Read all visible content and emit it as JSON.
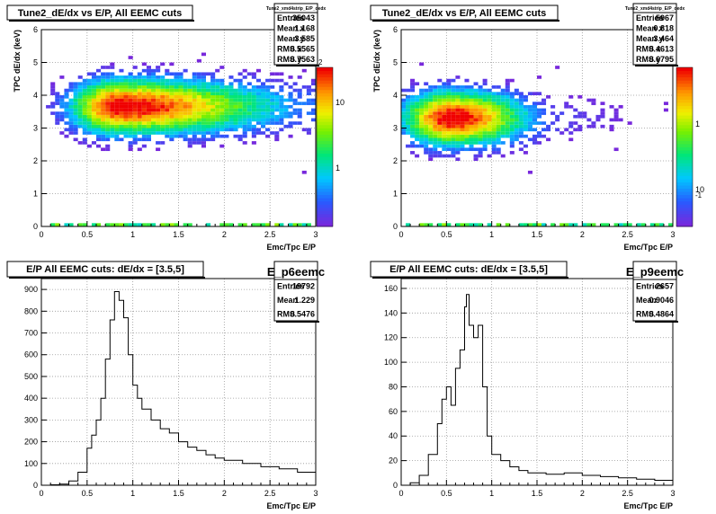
{
  "panels": [
    {
      "title": "Tune2_dE/dx vs E/P, All EEMC cuts",
      "stats": {
        "name": "Tune2_xmd4strip_E/P_dedx",
        "rows": [
          {
            "label": "Entries",
            "value": "35043"
          },
          {
            "label": "Mean x",
            "value": "1.168"
          },
          {
            "label": "Mean y",
            "value": "3.585"
          },
          {
            "label": "RMS x",
            "value": "0.5565"
          },
          {
            "label": "RMS y",
            "value": "0.7563"
          }
        ]
      },
      "colorbar_ticks": [
        "10",
        "1"
      ],
      "colorbar_exp": "2"
    },
    {
      "title": "Tune2_dE/dx vs E/P, All EEMC cuts",
      "stats": {
        "name": "Tune2_xmd4strip_E/P_dedx",
        "rows": [
          {
            "label": "Entries",
            "value": "5967"
          },
          {
            "label": "Mean x",
            "value": "0.818"
          },
          {
            "label": "Mean y",
            "value": "3.464"
          },
          {
            "label": "RMS x",
            "value": "0.4613"
          },
          {
            "label": "RMS y",
            "value": "0.6795"
          }
        ]
      },
      "colorbar_ticks": [
        "1",
        "10"
      ],
      "colorbar_exp": "-1"
    },
    {
      "title": "E/P All EEMC cuts: dE/dx = [3.5,5]",
      "stats": {
        "name": "E_p6eemc",
        "rows": [
          {
            "label": "Entries",
            "value": "19792"
          },
          {
            "label": "Mean",
            "value": "1.229"
          },
          {
            "label": "RMS",
            "value": "0.5476"
          }
        ]
      }
    },
    {
      "title": "E/P All EEMC cuts: dE/dx = [3.5,5]",
      "stats": {
        "name": "E_p9eemc",
        "rows": [
          {
            "label": "Entries",
            "value": "2657"
          },
          {
            "label": "Mean",
            "value": "0.9046"
          },
          {
            "label": "RMS",
            "value": "0.4864"
          }
        ]
      }
    }
  ],
  "chart_data": [
    {
      "type": "heatmap",
      "xlabel": "Emc/Tpc  E/P",
      "ylabel": "TPC dE/dx (keV)",
      "xlim": [
        0,
        3
      ],
      "ylim": [
        0,
        6
      ],
      "xticks": [
        "0",
        "0.5",
        "1",
        "1.5",
        "2",
        "2.5",
        "3"
      ],
      "yticks": [
        "0",
        "1",
        "2",
        "3",
        "4",
        "5",
        "6"
      ],
      "grid": true,
      "peak": {
        "x": 0.85,
        "y": 3.65
      }
    },
    {
      "type": "heatmap",
      "xlabel": "Emc/Tpc  E/P",
      "ylabel": "TPC dE/dx (keV)",
      "xlim": [
        0,
        3
      ],
      "ylim": [
        0,
        6
      ],
      "xticks": [
        "0",
        "0.5",
        "1",
        "1.5",
        "2",
        "2.5",
        "3"
      ],
      "yticks": [
        "0",
        "1",
        "2",
        "3",
        "4",
        "5",
        "6"
      ],
      "grid": true,
      "peak": {
        "x": 0.55,
        "y": 3.3
      }
    },
    {
      "type": "histogram",
      "xlabel": "Emc/Tpc  E/P",
      "ylabel": "",
      "xlim": [
        0,
        3
      ],
      "ylim": [
        0,
        950
      ],
      "xticks": [
        "0",
        "0.5",
        "1",
        "1.5",
        "2",
        "2.5",
        "3"
      ],
      "yticks": [
        "0",
        "100",
        "200",
        "300",
        "400",
        "500",
        "600",
        "700",
        "800",
        "900"
      ],
      "ytick_values": [
        0,
        100,
        200,
        300,
        400,
        500,
        600,
        700,
        800,
        900
      ],
      "grid": true,
      "points": [
        [
          0.0,
          0
        ],
        [
          0.1,
          2
        ],
        [
          0.2,
          5
        ],
        [
          0.3,
          20
        ],
        [
          0.4,
          60
        ],
        [
          0.5,
          170
        ],
        [
          0.55,
          230
        ],
        [
          0.6,
          300
        ],
        [
          0.65,
          400
        ],
        [
          0.7,
          580
        ],
        [
          0.75,
          760
        ],
        [
          0.8,
          890
        ],
        [
          0.85,
          850
        ],
        [
          0.9,
          770
        ],
        [
          0.95,
          600
        ],
        [
          1.0,
          460
        ],
        [
          1.05,
          400
        ],
        [
          1.1,
          350
        ],
        [
          1.2,
          300
        ],
        [
          1.3,
          260
        ],
        [
          1.4,
          240
        ],
        [
          1.5,
          200
        ],
        [
          1.6,
          175
        ],
        [
          1.7,
          160
        ],
        [
          1.8,
          140
        ],
        [
          1.9,
          125
        ],
        [
          2.0,
          115
        ],
        [
          2.2,
          100
        ],
        [
          2.4,
          85
        ],
        [
          2.6,
          75
        ],
        [
          2.8,
          60
        ],
        [
          3.0,
          45
        ]
      ]
    },
    {
      "type": "histogram",
      "xlabel": "Emc/Tpc  E/P",
      "ylabel": "",
      "xlim": [
        0,
        3
      ],
      "ylim": [
        0,
        168
      ],
      "xticks": [
        "0",
        "0.5",
        "1",
        "1.5",
        "2",
        "2.5",
        "3"
      ],
      "yticks": [
        "0",
        "20",
        "40",
        "60",
        "80",
        "100",
        "120",
        "140",
        "160"
      ],
      "ytick_values": [
        0,
        20,
        40,
        60,
        80,
        100,
        120,
        140,
        160
      ],
      "grid": true,
      "points": [
        [
          0.0,
          0
        ],
        [
          0.1,
          2
        ],
        [
          0.2,
          8
        ],
        [
          0.3,
          25
        ],
        [
          0.4,
          50
        ],
        [
          0.45,
          70
        ],
        [
          0.5,
          80
        ],
        [
          0.55,
          65
        ],
        [
          0.6,
          95
        ],
        [
          0.65,
          110
        ],
        [
          0.7,
          145
        ],
        [
          0.72,
          155
        ],
        [
          0.75,
          130
        ],
        [
          0.8,
          120
        ],
        [
          0.85,
          130
        ],
        [
          0.9,
          80
        ],
        [
          0.95,
          40
        ],
        [
          1.0,
          25
        ],
        [
          1.1,
          20
        ],
        [
          1.2,
          15
        ],
        [
          1.3,
          12
        ],
        [
          1.4,
          10
        ],
        [
          1.6,
          9
        ],
        [
          1.8,
          10
        ],
        [
          2.0,
          8
        ],
        [
          2.2,
          7
        ],
        [
          2.4,
          6
        ],
        [
          2.6,
          5
        ],
        [
          2.8,
          4
        ],
        [
          3.0,
          3
        ]
      ]
    }
  ]
}
